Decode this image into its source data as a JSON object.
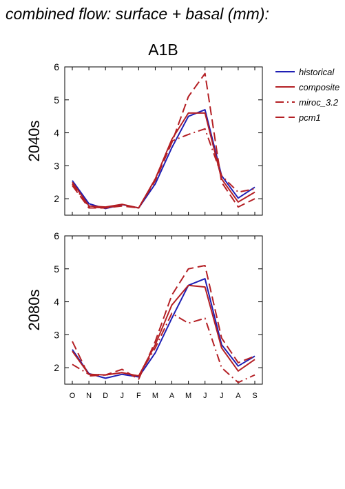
{
  "figure": {
    "title": "combined flow: surface + basal (mm):",
    "scenario": "A1B"
  },
  "legend": [
    {
      "name": "historical",
      "color": "#1f1fb4",
      "dash": "solid"
    },
    {
      "name": "composite",
      "color": "#b41f24",
      "dash": "solid"
    },
    {
      "name": "miroc_3.2",
      "color": "#b41f24",
      "dash": "dashdot"
    },
    {
      "name": "pcm1",
      "color": "#b41f24",
      "dash": "dash"
    }
  ],
  "chart_data": [
    {
      "type": "line",
      "ylabel": "2040s",
      "categories": [
        "O",
        "N",
        "D",
        "J",
        "F",
        "M",
        "A",
        "M",
        "J",
        "J",
        "A",
        "S"
      ],
      "ylim": [
        1.5,
        6
      ],
      "yticks": [
        2,
        3,
        4,
        5,
        6
      ],
      "series": [
        {
          "name": "historical",
          "values": [
            2.55,
            1.85,
            1.7,
            1.82,
            1.72,
            2.45,
            3.55,
            4.5,
            4.7,
            2.7,
            2.02,
            2.35
          ]
        },
        {
          "name": "composite",
          "values": [
            2.5,
            1.78,
            1.75,
            1.83,
            1.72,
            2.6,
            3.8,
            4.6,
            4.6,
            2.6,
            1.9,
            2.2
          ]
        },
        {
          "name": "miroc_3.2",
          "values": [
            2.45,
            1.75,
            1.72,
            1.82,
            1.72,
            2.6,
            3.75,
            3.95,
            4.12,
            2.7,
            2.2,
            2.3
          ]
        },
        {
          "name": "pcm1",
          "values": [
            2.4,
            1.72,
            1.72,
            1.78,
            1.72,
            2.55,
            3.7,
            5.1,
            5.8,
            2.5,
            1.75,
            2.0
          ]
        }
      ]
    },
    {
      "type": "line",
      "ylabel": "2080s",
      "categories": [
        "O",
        "N",
        "D",
        "J",
        "F",
        "M",
        "A",
        "M",
        "J",
        "J",
        "A",
        "S"
      ],
      "ylim": [
        1.5,
        6
      ],
      "yticks": [
        2,
        3,
        4,
        5,
        6
      ],
      "series": [
        {
          "name": "historical",
          "values": [
            2.55,
            1.82,
            1.68,
            1.8,
            1.72,
            2.45,
            3.5,
            4.5,
            4.7,
            2.7,
            2.05,
            2.35
          ]
        },
        {
          "name": "composite",
          "values": [
            2.5,
            1.8,
            1.78,
            1.85,
            1.75,
            2.7,
            3.9,
            4.5,
            4.45,
            2.6,
            1.9,
            2.25
          ]
        },
        {
          "name": "miroc_3.2",
          "values": [
            2.1,
            1.8,
            1.78,
            1.85,
            1.75,
            2.6,
            3.65,
            3.35,
            3.5,
            2.0,
            1.55,
            1.78
          ]
        },
        {
          "name": "pcm1",
          "values": [
            2.8,
            1.75,
            1.78,
            1.95,
            1.65,
            2.8,
            4.2,
            5.0,
            5.1,
            2.9,
            2.15,
            2.35
          ]
        }
      ]
    }
  ]
}
